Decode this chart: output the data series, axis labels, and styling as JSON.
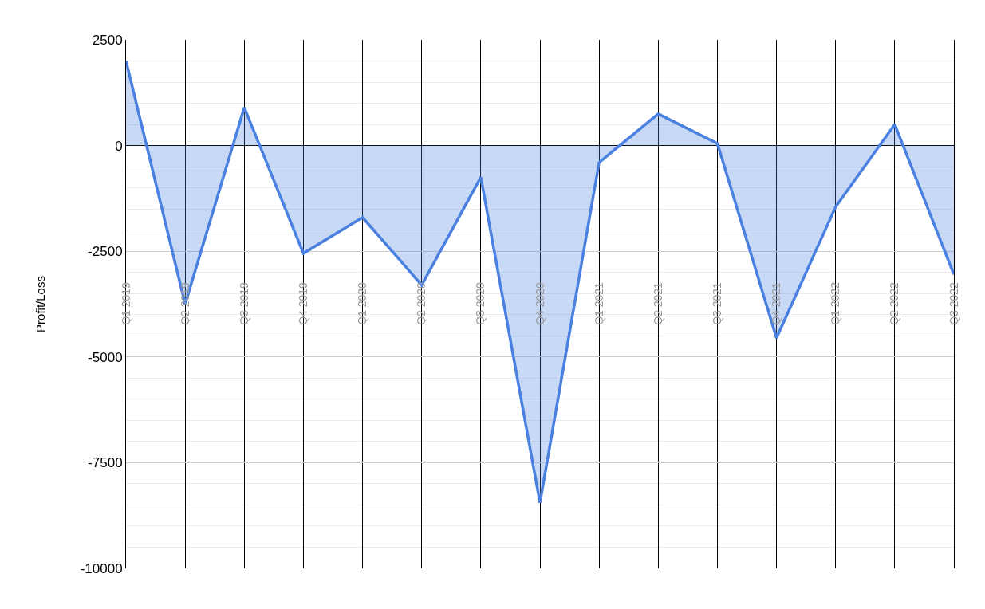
{
  "chart_data": {
    "type": "area",
    "ylabel": "Profit/Loss",
    "categories": [
      "Q1 2019",
      "Q2 2019",
      "Q3 2019",
      "Q4 2019",
      "Q1 2020",
      "Q2 2020",
      "Q3 2020",
      "Q4 2020",
      "Q1 2021",
      "Q2 2021",
      "Q3 2021",
      "Q4 2021",
      "Q1 2022",
      "Q2 2022",
      "Q3 2022"
    ],
    "series": [
      {
        "color": "#4a80e0",
        "values": [
          2000,
          -3750,
          900,
          -2550,
          -1700,
          -3300,
          -750,
          -8450,
          -400,
          750,
          50,
          -4550,
          -1450,
          500,
          -3050
        ]
      }
    ],
    "ylim": [
      -10000,
      2500
    ],
    "yticks": [
      -10000,
      -7500,
      -5000,
      -2500,
      0,
      2500
    ],
    "grid": true
  }
}
